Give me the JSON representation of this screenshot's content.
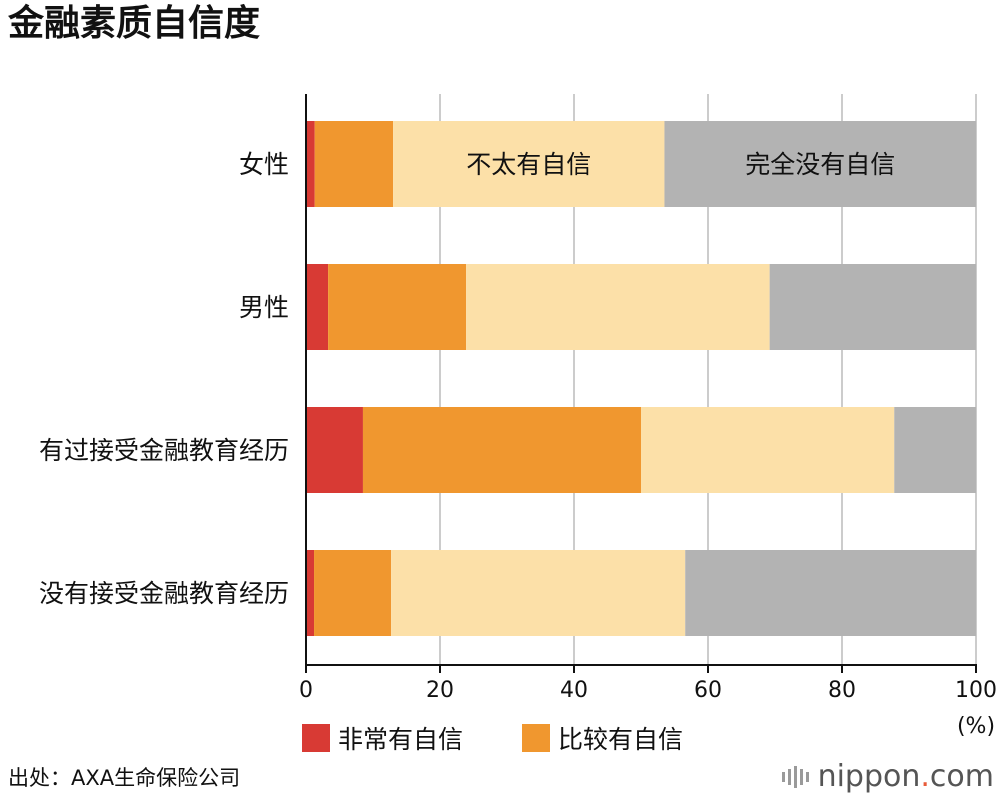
{
  "title": "金融素质自信度",
  "source": "出处：AXA生命保险公司",
  "brand": {
    "name": "nippon",
    "dot": ".",
    "tld": "com"
  },
  "chart_data": {
    "type": "bar",
    "orientation": "horizontal",
    "stacked": true,
    "title": "金融素质自信度",
    "categories": [
      "女性",
      "男性",
      "有过接受金融教育经历",
      "没有接受金融教育经历"
    ],
    "series": [
      {
        "name": "非常有自信",
        "color": "#d83a34",
        "values": [
          1.3,
          3.3,
          8.5,
          1.2
        ]
      },
      {
        "name": "比较有自信",
        "color": "#f0972f",
        "values": [
          11.7,
          20.6,
          41.5,
          11.5
        ]
      },
      {
        "name": "不太有自信",
        "color": "#fce0a8",
        "values": [
          40.5,
          45.3,
          37.8,
          43.9
        ]
      },
      {
        "name": "完全没有自信",
        "color": "#b3b3b3",
        "values": [
          46.5,
          30.8,
          12.2,
          43.4
        ]
      }
    ],
    "xlim": [
      0,
      100
    ],
    "xticks": [
      0,
      20,
      40,
      60,
      80,
      100
    ],
    "xunit": "(%)",
    "grid": true,
    "legend": {
      "placement": "bottom",
      "entries": [
        "非常有自信",
        "比较有自信"
      ]
    },
    "inbar_labels": [
      {
        "series": "不太有自信",
        "category": "女性",
        "text": "不太有自信"
      },
      {
        "series": "完全没有自信",
        "category": "女性",
        "text": "完全没有自信"
      }
    ]
  }
}
